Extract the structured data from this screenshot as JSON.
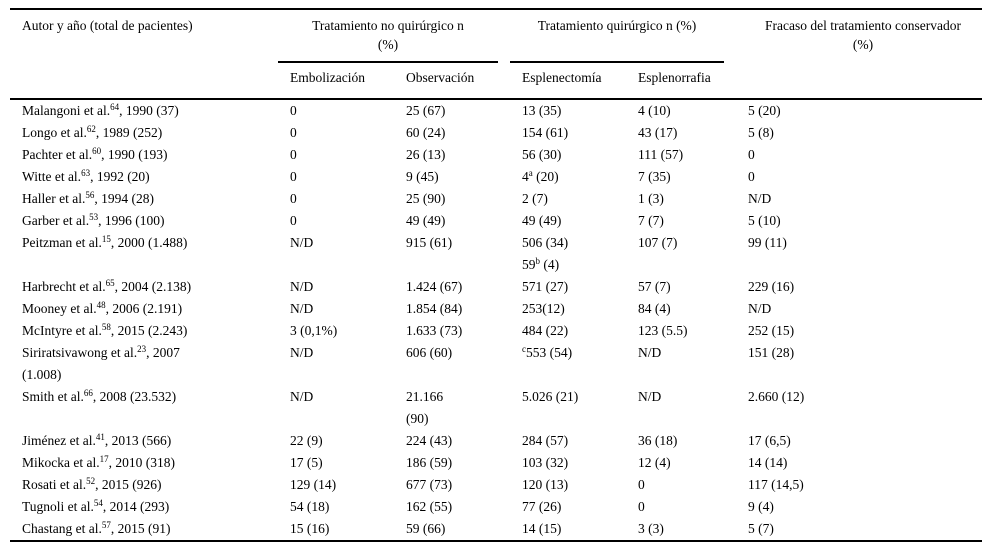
{
  "table": {
    "headers": {
      "author": "Autor y año (total de pacientes)",
      "group_nonsurgical": "Tratamiento no quirúrgico n\n(%)",
      "group_surgical": "Tratamiento quirúrgico n (%)",
      "failure": "Fracaso del tratamiento conservador\n(%)",
      "sub": {
        "embolizacion": "Embolización",
        "observacion": "Observación",
        "esplenectomia": "Esplenectomía",
        "esplenorrafia": "Esplenorrafia"
      }
    },
    "rows": [
      {
        "author": "Malangoni et al.^{64}, 1990 (37)",
        "embolizacion": "0",
        "observacion": "25 (67)",
        "esplenectomia": "13 (35)",
        "esplenorrafia": "4 (10)",
        "fracaso": "5 (20)"
      },
      {
        "author": "Longo et al.^{62}, 1989 (252)",
        "embolizacion": "0",
        "observacion": "60 (24)",
        "esplenectomia": "154 (61)",
        "esplenorrafia": "43 (17)",
        "fracaso": "5 (8)"
      },
      {
        "author": "Pachter et al.^{60}, 1990 (193)",
        "embolizacion": "0",
        "observacion": "26 (13)",
        "esplenectomia": "56 (30)",
        "esplenorrafia": "111 (57)",
        "fracaso": "0"
      },
      {
        "author": "Witte et al.^{63}, 1992 (20)",
        "embolizacion": "0",
        "observacion": "9 (45)",
        "esplenectomia": "4^{a} (20)",
        "esplenorrafia": "7 (35)",
        "fracaso": "0"
      },
      {
        "author": "Haller et al.^{56}, 1994 (28)",
        "embolizacion": "0",
        "observacion": "25 (90)",
        "esplenectomia": "2 (7)",
        "esplenorrafia": "1 (3)",
        "fracaso": "N/D"
      },
      {
        "author": "Garber et al.^{53}, 1996 (100)",
        "embolizacion": "0",
        "observacion": "49 (49)",
        "esplenectomia": "49 (49)",
        "esplenorrafia": "7 (7)",
        "fracaso": "5 (10)"
      },
      {
        "author": "Peitzman et al.^{15}, 2000 (1.488)",
        "embolizacion": "N/D",
        "observacion": "915 (61)",
        "esplenectomia": "506 (34)\n59^{b} (4)",
        "esplenorrafia": "107 (7)",
        "fracaso": "99 (11)"
      },
      {
        "author": "Harbrecht et al.^{65}, 2004 (2.138)",
        "embolizacion": "N/D",
        "observacion": "1.424 (67)",
        "esplenectomia": "571 (27)",
        "esplenorrafia": "57 (7)",
        "fracaso": "229 (16)"
      },
      {
        "author": "Mooney et al.^{48}, 2006 (2.191)",
        "embolizacion": "N/D",
        "observacion": "1.854 (84)",
        "esplenectomia": "253(12)",
        "esplenorrafia": "84 (4)",
        "fracaso": "N/D"
      },
      {
        "author": "McIntyre et al.^{58}, 2015 (2.243)",
        "embolizacion": "3 (0,1%)",
        "observacion": "1.633 (73)",
        "esplenectomia": "484 (22)",
        "esplenorrafia": "123 (5.5)",
        "fracaso": "252 (15)"
      },
      {
        "author": "Siriratsivawong et al.^{23}, 2007\n(1.008)",
        "embolizacion": "N/D",
        "observacion": "606 (60)",
        "esplenectomia": "^{c}553 (54)",
        "esplenorrafia": "N/D",
        "fracaso": "151 (28)"
      },
      {
        "author": "Smith et al.^{66}, 2008 (23.532)",
        "embolizacion": "N/D",
        "observacion": "21.166\n(90)",
        "esplenectomia": "5.026 (21)",
        "esplenorrafia": "N/D",
        "fracaso": "2.660 (12)"
      },
      {
        "author": "Jiménez et al.^{41}, 2013 (566)",
        "embolizacion": "22 (9)",
        "observacion": "224 (43)",
        "esplenectomia": "284 (57)",
        "esplenorrafia": "36 (18)",
        "fracaso": "17 (6,5)"
      },
      {
        "author": "Mikocka et al.^{17}, 2010 (318)",
        "embolizacion": "17 (5)",
        "observacion": "186 (59)",
        "esplenectomia": "103 (32)",
        "esplenorrafia": "12 (4)",
        "fracaso": "14 (14)"
      },
      {
        "author": "Rosati et al.^{52}, 2015 (926)",
        "embolizacion": "129 (14)",
        "observacion": "677 (73)",
        "esplenectomia": "120 (13)",
        "esplenorrafia": "0",
        "fracaso": "117 (14,5)"
      },
      {
        "author": "Tugnoli et al.^{54}, 2014 (293)",
        "embolizacion": "54 (18)",
        "observacion": "162 (55)",
        "esplenectomia": "77 (26)",
        "esplenorrafia": "0",
        "fracaso": "9 (4)"
      },
      {
        "author": "Chastang et al.^{57}, 2015 (91)",
        "embolizacion": "15 (16)",
        "observacion": "59 (66)",
        "esplenectomia": "14 (15)",
        "esplenorrafia": "3 (3)",
        "fracaso": "5 (7)"
      }
    ]
  },
  "colors": {
    "text": "#000000",
    "background": "#ffffff",
    "rule": "#000000"
  }
}
